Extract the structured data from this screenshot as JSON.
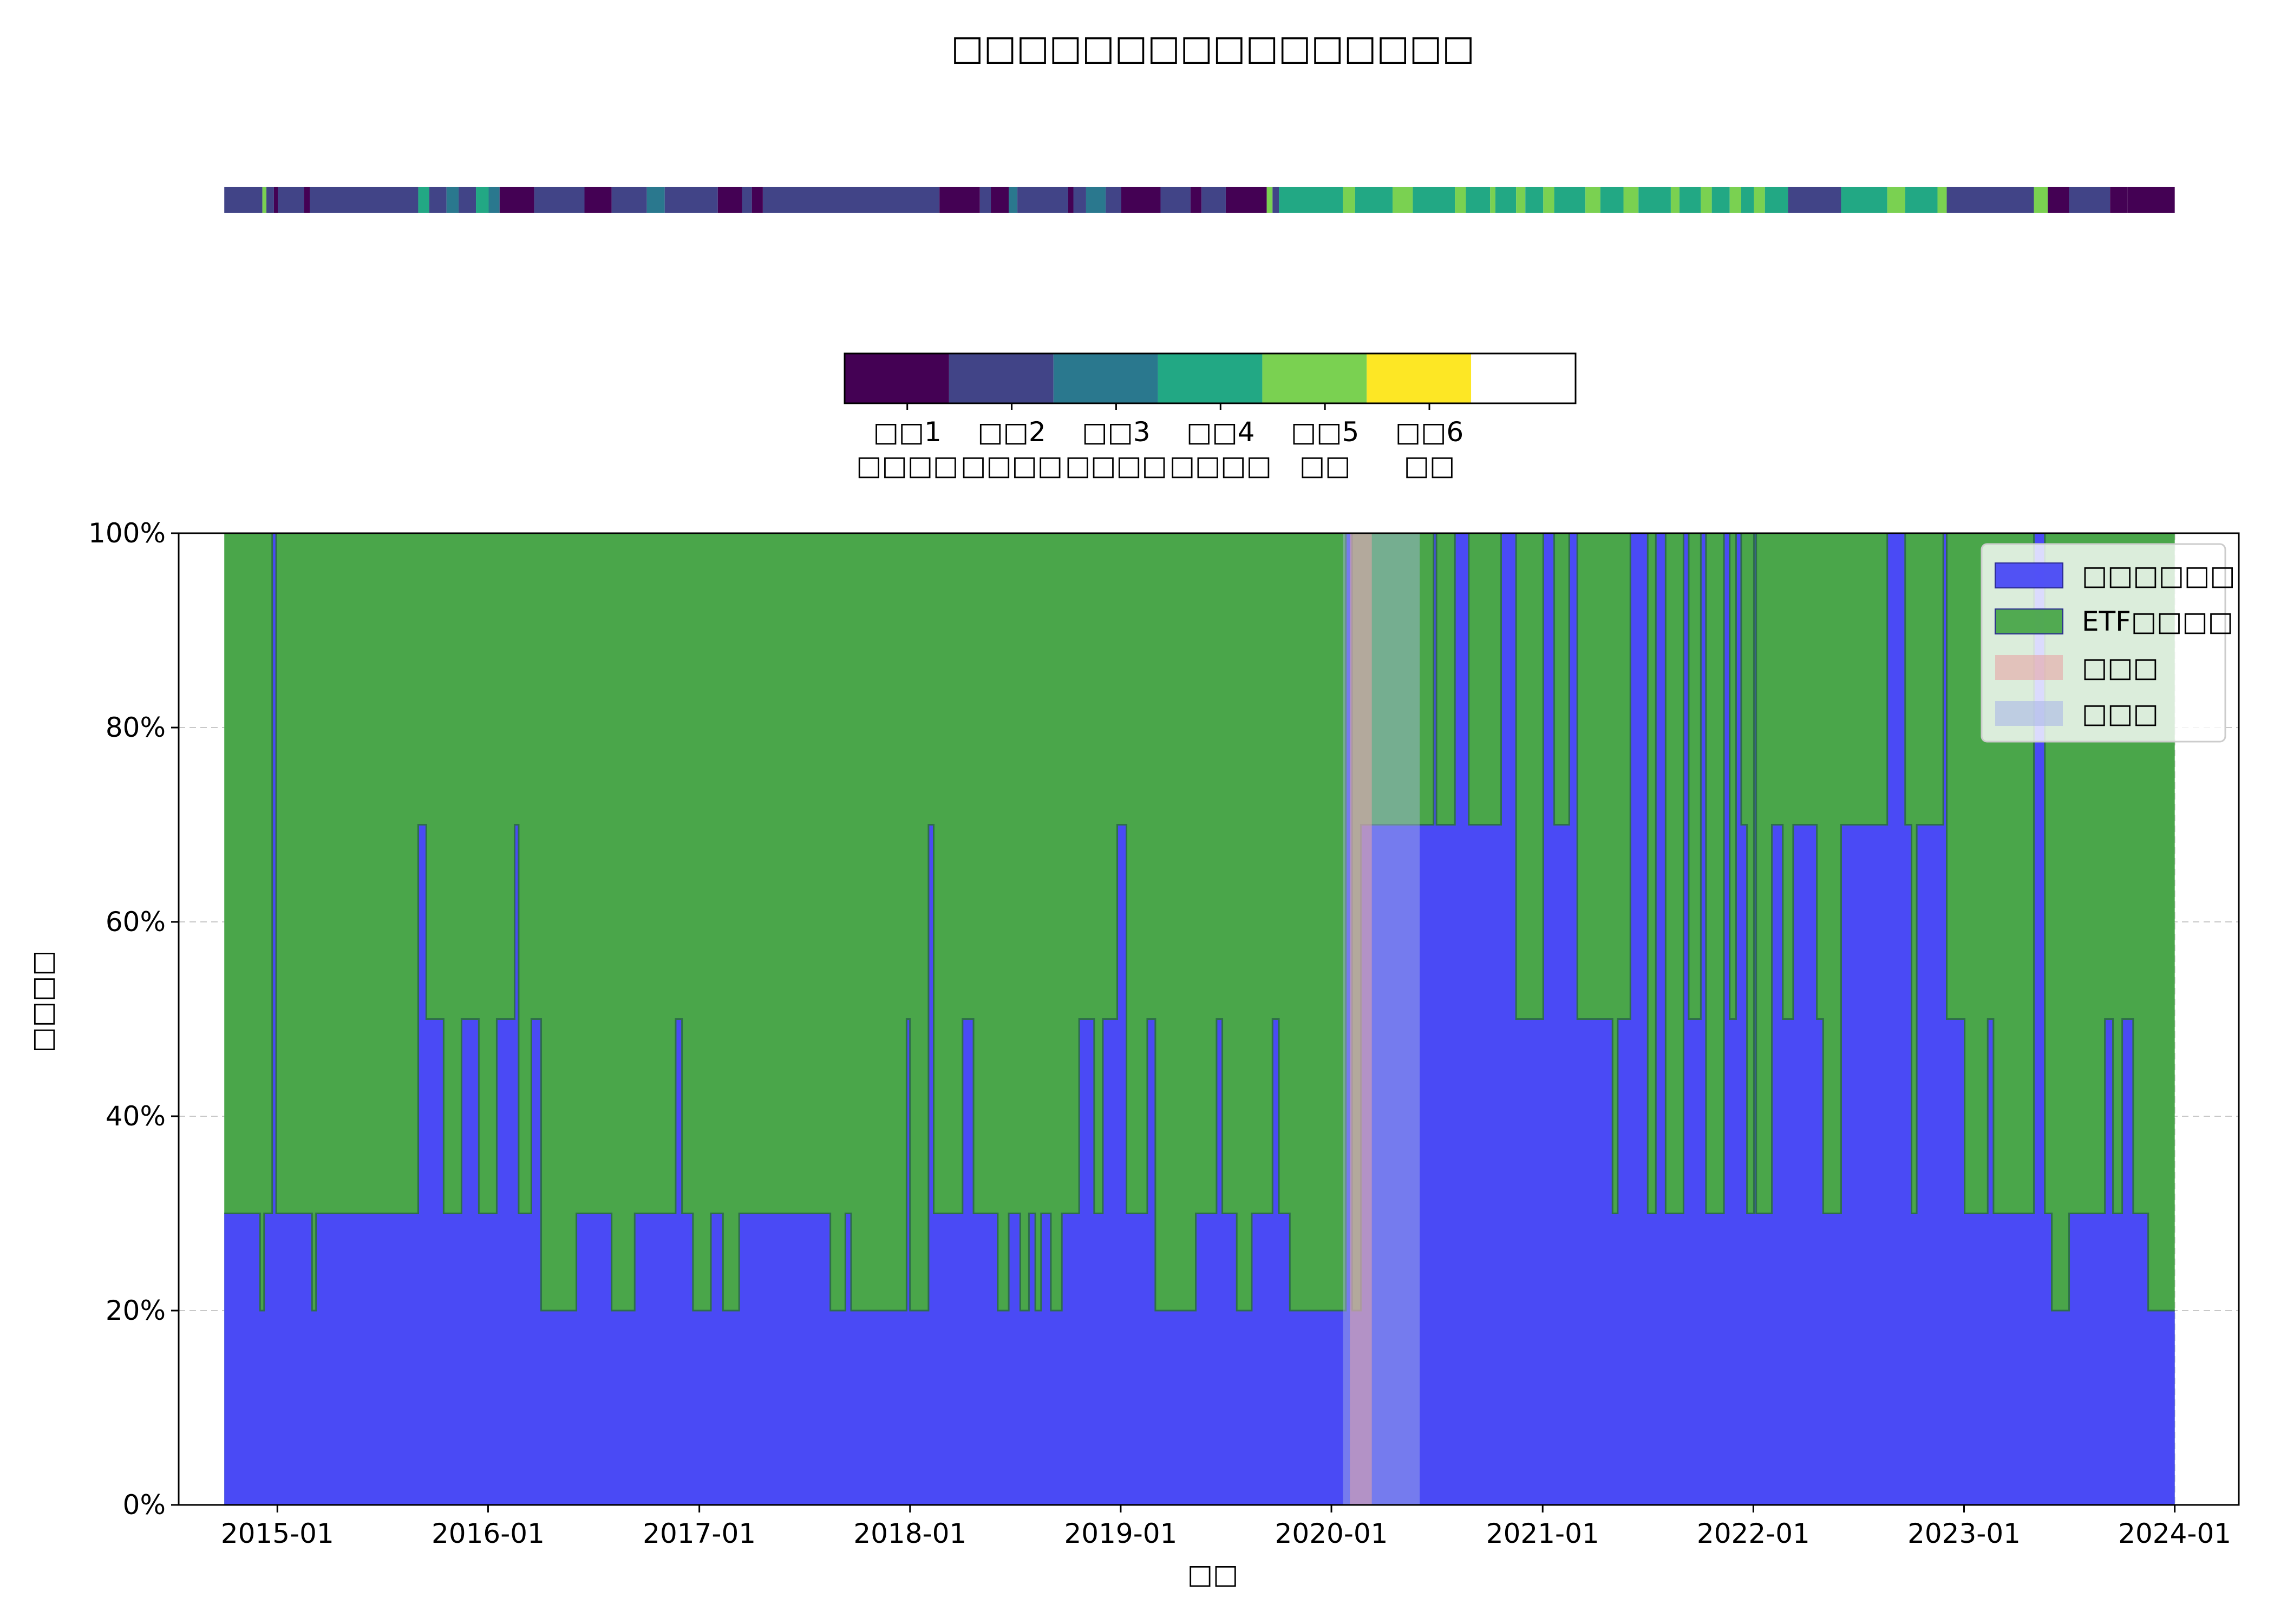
{
  "chart_data": {
    "type": "area",
    "title": "□□□□□□□□□□□□□□□□",
    "xlabel": "□□",
    "ylabel": "□□□□",
    "ylim": [
      0,
      100
    ],
    "y_unit": "%",
    "y_ticks": [
      0,
      20,
      40,
      60,
      80,
      100
    ],
    "y_tick_labels": [
      "0%",
      "20%",
      "40%",
      "60%",
      "80%",
      "100%"
    ],
    "x_ticks": [
      "2014-12-31",
      "2015-12-31",
      "2016-12-31",
      "2017-12-31",
      "2018-12-31",
      "2019-12-31",
      "2020-12-31",
      "2021-12-31",
      "2022-12-31",
      "2023-12-31"
    ],
    "x_tick_labels": [
      "2015-01",
      "2016-01",
      "2017-01",
      "2018-01",
      "2019-01",
      "2020-01",
      "2021-01",
      "2022-01",
      "2023-01",
      "2024-01"
    ],
    "xlim": [
      "2014-07-13",
      "2024-04-20"
    ],
    "grid": true,
    "legend_position": "top-right",
    "series": [
      {
        "name": "□□□□□□",
        "color": "#4a4af5",
        "points": [
          [
            "2014-09-30",
            30
          ],
          [
            "2014-12-01",
            20
          ],
          [
            "2014-12-08",
            30
          ],
          [
            "2014-12-22",
            100
          ],
          [
            "2014-12-29",
            30
          ],
          [
            "2015-03-01",
            20
          ],
          [
            "2015-03-08",
            30
          ],
          [
            "2015-09-01",
            70
          ],
          [
            "2015-09-15",
            50
          ],
          [
            "2015-10-15",
            30
          ],
          [
            "2015-11-15",
            50
          ],
          [
            "2015-12-15",
            30
          ],
          [
            "2016-01-15",
            50
          ],
          [
            "2016-02-15",
            70
          ],
          [
            "2016-02-22",
            30
          ],
          [
            "2016-03-15",
            50
          ],
          [
            "2016-04-01",
            20
          ],
          [
            "2016-06-01",
            30
          ],
          [
            "2016-08-01",
            20
          ],
          [
            "2016-09-10",
            30
          ],
          [
            "2016-11-20",
            50
          ],
          [
            "2016-12-01",
            30
          ],
          [
            "2016-12-20",
            20
          ],
          [
            "2017-01-20",
            30
          ],
          [
            "2017-02-10",
            20
          ],
          [
            "2017-03-10",
            30
          ],
          [
            "2017-08-15",
            20
          ],
          [
            "2017-09-10",
            30
          ],
          [
            "2017-09-20",
            20
          ],
          [
            "2017-12-25",
            50
          ],
          [
            "2017-12-31",
            20
          ],
          [
            "2018-02-01",
            70
          ],
          [
            "2018-02-10",
            30
          ],
          [
            "2018-04-01",
            50
          ],
          [
            "2018-04-20",
            30
          ],
          [
            "2018-06-01",
            20
          ],
          [
            "2018-06-20",
            30
          ],
          [
            "2018-07-10",
            20
          ],
          [
            "2018-07-25",
            30
          ],
          [
            "2018-08-05",
            20
          ],
          [
            "2018-08-15",
            30
          ],
          [
            "2018-09-01",
            20
          ],
          [
            "2018-09-20",
            30
          ],
          [
            "2018-10-20",
            50
          ],
          [
            "2018-11-15",
            30
          ],
          [
            "2018-11-30",
            50
          ],
          [
            "2018-12-25",
            70
          ],
          [
            "2019-01-10",
            30
          ],
          [
            "2019-02-15",
            50
          ],
          [
            "2019-03-01",
            20
          ],
          [
            "2019-05-10",
            30
          ],
          [
            "2019-06-15",
            50
          ],
          [
            "2019-06-25",
            30
          ],
          [
            "2019-07-20",
            20
          ],
          [
            "2019-08-15",
            30
          ],
          [
            "2019-09-20",
            50
          ],
          [
            "2019-10-01",
            30
          ],
          [
            "2019-10-20",
            20
          ],
          [
            "2019-12-31",
            20
          ],
          [
            "2020-01-25",
            100
          ],
          [
            "2020-02-05",
            20
          ],
          [
            "2020-02-20",
            70
          ],
          [
            "2020-06-15",
            70
          ],
          [
            "2020-06-25",
            100
          ],
          [
            "2020-06-30",
            70
          ],
          [
            "2020-08-01",
            100
          ],
          [
            "2020-08-25",
            70
          ],
          [
            "2020-10-20",
            100
          ],
          [
            "2020-11-15",
            50
          ],
          [
            "2021-01-01",
            100
          ],
          [
            "2021-01-20",
            70
          ],
          [
            "2021-02-15",
            100
          ],
          [
            "2021-03-01",
            50
          ],
          [
            "2021-05-01",
            30
          ],
          [
            "2021-05-10",
            50
          ],
          [
            "2021-06-01",
            100
          ],
          [
            "2021-07-01",
            30
          ],
          [
            "2021-07-15",
            100
          ],
          [
            "2021-08-01",
            30
          ],
          [
            "2021-09-01",
            100
          ],
          [
            "2021-09-10",
            50
          ],
          [
            "2021-10-01",
            100
          ],
          [
            "2021-10-10",
            30
          ],
          [
            "2021-11-10",
            100
          ],
          [
            "2021-11-20",
            50
          ],
          [
            "2021-12-01",
            100
          ],
          [
            "2021-12-10",
            70
          ],
          [
            "2021-12-20",
            30
          ],
          [
            "2022-01-01",
            100
          ],
          [
            "2022-01-05",
            30
          ],
          [
            "2022-02-01",
            70
          ],
          [
            "2022-02-20",
            50
          ],
          [
            "2022-03-10",
            70
          ],
          [
            "2022-04-20",
            50
          ],
          [
            "2022-05-01",
            30
          ],
          [
            "2022-06-01",
            70
          ],
          [
            "2022-08-20",
            100
          ],
          [
            "2022-09-20",
            70
          ],
          [
            "2022-10-01",
            30
          ],
          [
            "2022-10-10",
            70
          ],
          [
            "2022-11-25",
            100
          ],
          [
            "2022-12-01",
            50
          ],
          [
            "2023-01-01",
            30
          ],
          [
            "2023-02-10",
            50
          ],
          [
            "2023-02-20",
            30
          ],
          [
            "2023-05-01",
            100
          ],
          [
            "2023-05-20",
            30
          ],
          [
            "2023-06-01",
            20
          ],
          [
            "2023-07-01",
            30
          ],
          [
            "2023-09-01",
            50
          ],
          [
            "2023-09-15",
            30
          ],
          [
            "2023-10-01",
            50
          ],
          [
            "2023-10-20",
            30
          ],
          [
            "2023-11-15",
            20
          ],
          [
            "2023-12-31",
            20
          ]
        ]
      },
      {
        "name": "ETF□□□□",
        "color": "#4aa64a",
        "top": 100,
        "range": [
          "2014-09-30",
          "2023-12-31"
        ]
      },
      {
        "name": "□□□",
        "color": "#e6a5a5",
        "range": [
          "2020-02-01",
          "2020-03-10"
        ]
      },
      {
        "name": "□□□",
        "color": "#aab8e6",
        "range": [
          "2020-01-20",
          "2020-06-01"
        ]
      }
    ],
    "regime_strip": {
      "range": [
        "2014-09-30",
        "2023-12-31"
      ],
      "segments": [
        [
          "2014-09-30",
          2
        ],
        [
          "2014-12-05",
          5
        ],
        [
          "2014-12-12",
          2
        ],
        [
          "2014-12-25",
          1
        ],
        [
          "2015-01-01",
          2
        ],
        [
          "2015-02-15",
          1
        ],
        [
          "2015-02-25",
          2
        ],
        [
          "2015-09-01",
          4
        ],
        [
          "2015-09-20",
          2
        ],
        [
          "2015-10-20",
          3
        ],
        [
          "2015-11-10",
          2
        ],
        [
          "2015-12-10",
          4
        ],
        [
          "2016-01-01",
          3
        ],
        [
          "2016-01-20",
          1
        ],
        [
          "2016-03-20",
          2
        ],
        [
          "2016-06-15",
          1
        ],
        [
          "2016-08-01",
          2
        ],
        [
          "2016-10-01",
          3
        ],
        [
          "2016-11-01",
          2
        ],
        [
          "2017-02-01",
          1
        ],
        [
          "2017-03-15",
          2
        ],
        [
          "2017-04-01",
          1
        ],
        [
          "2017-04-20",
          2
        ],
        [
          "2018-02-20",
          1
        ],
        [
          "2018-05-01",
          2
        ],
        [
          "2018-05-20",
          1
        ],
        [
          "2018-06-20",
          3
        ],
        [
          "2018-07-05",
          2
        ],
        [
          "2018-10-01",
          1
        ],
        [
          "2018-10-10",
          2
        ],
        [
          "2018-11-01",
          3
        ],
        [
          "2018-12-05",
          2
        ],
        [
          "2019-01-01",
          1
        ],
        [
          "2019-03-10",
          2
        ],
        [
          "2019-05-01",
          1
        ],
        [
          "2019-05-20",
          2
        ],
        [
          "2019-07-01",
          1
        ],
        [
          "2019-09-10",
          5
        ],
        [
          "2019-09-20",
          2
        ],
        [
          "2019-10-01",
          4
        ],
        [
          "2020-01-20",
          5
        ],
        [
          "2020-02-10",
          4
        ],
        [
          "2020-04-15",
          5
        ],
        [
          "2020-05-20",
          4
        ],
        [
          "2020-08-01",
          5
        ],
        [
          "2020-08-20",
          4
        ],
        [
          "2020-10-01",
          5
        ],
        [
          "2020-10-10",
          4
        ],
        [
          "2020-11-15",
          5
        ],
        [
          "2020-12-01",
          4
        ],
        [
          "2021-01-01",
          5
        ],
        [
          "2021-01-20",
          4
        ],
        [
          "2021-03-15",
          5
        ],
        [
          "2021-04-10",
          4
        ],
        [
          "2021-05-20",
          5
        ],
        [
          "2021-06-15",
          4
        ],
        [
          "2021-08-10",
          5
        ],
        [
          "2021-08-25",
          4
        ],
        [
          "2021-10-01",
          5
        ],
        [
          "2021-10-20",
          4
        ],
        [
          "2021-11-20",
          5
        ],
        [
          "2021-12-10",
          4
        ],
        [
          "2022-01-01",
          5
        ],
        [
          "2022-01-20",
          4
        ],
        [
          "2022-03-01",
          2
        ],
        [
          "2022-06-01",
          4
        ],
        [
          "2022-08-20",
          5
        ],
        [
          "2022-09-20",
          4
        ],
        [
          "2022-11-15",
          5
        ],
        [
          "2022-12-01",
          2
        ],
        [
          "2023-05-01",
          5
        ],
        [
          "2023-05-25",
          1
        ],
        [
          "2023-07-01",
          2
        ],
        [
          "2023-09-10",
          1
        ],
        [
          "2023-10-10",
          1
        ]
      ]
    },
    "colorbar": {
      "categories": [
        "□□1\n□□□□",
        "□□2\n□□□□",
        "□□3\n□□□□",
        "□□4\n□□□□",
        "□□5\n□□",
        "□□6\n□□"
      ],
      "colors": [
        "#440154",
        "#414487",
        "#2a788e",
        "#22a884",
        "#7ad151",
        "#fde725",
        "#ffffff"
      ]
    }
  }
}
